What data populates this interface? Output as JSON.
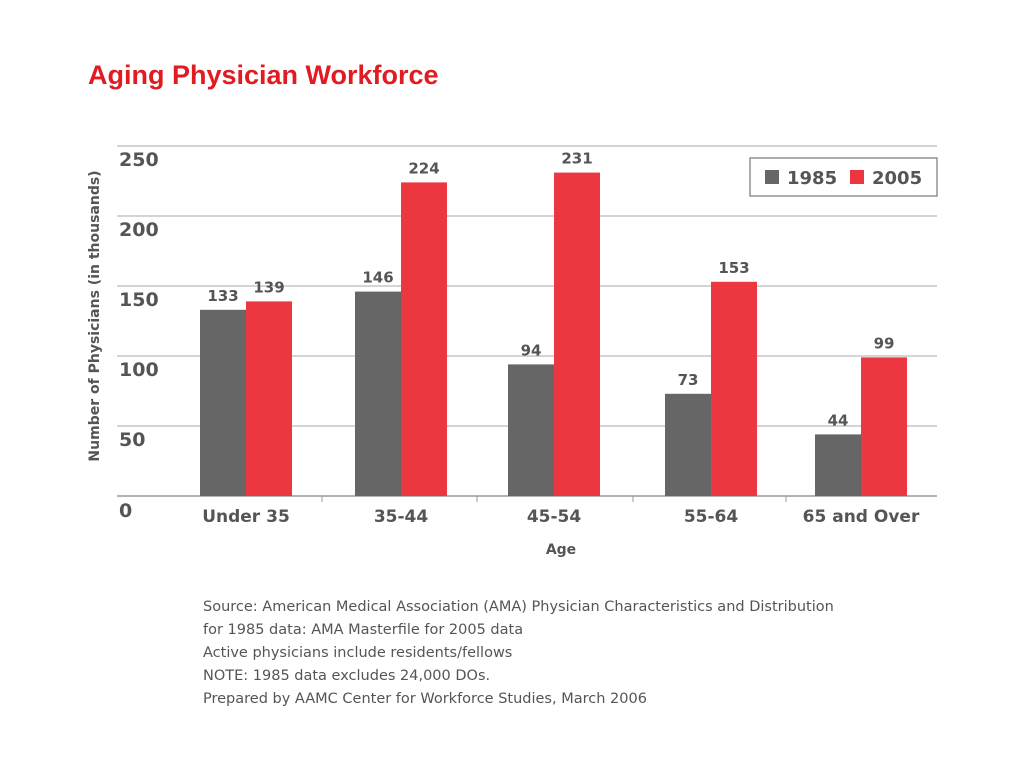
{
  "slide": {
    "title": "Aging Physician Workforce"
  },
  "colors": {
    "title": "#e01b22",
    "series_1985": "#666666",
    "series_2005": "#ec3640",
    "text": "#555555",
    "grid": "#aaaaaa"
  },
  "chart_data": {
    "type": "bar",
    "title": "",
    "xlabel": "Age",
    "ylabel": "Number of Physicians (in thousands)",
    "categories": [
      "Under 35",
      "35-44",
      "45-54",
      "55-64",
      "65 and Over"
    ],
    "series": [
      {
        "name": "1985",
        "values": [
          133,
          146,
          94,
          73,
          44
        ]
      },
      {
        "name": "2005",
        "values": [
          139,
          224,
          231,
          153,
          99
        ]
      }
    ],
    "ylim": [
      0,
      250
    ],
    "yticks": [
      0,
      50,
      100,
      150,
      200,
      250
    ],
    "grid": true,
    "legend_position": "top-right",
    "data_labels": true
  },
  "notes": [
    "Source: American Medical Association (AMA) Physician Characteristics and Distribution",
    "for 1985 data: AMA Masterfile for 2005 data",
    "Active physicians include residents/fellows",
    "NOTE: 1985 data excludes 24,000 DOs.",
    "Prepared by AAMC Center for Workforce Studies, March 2006"
  ]
}
